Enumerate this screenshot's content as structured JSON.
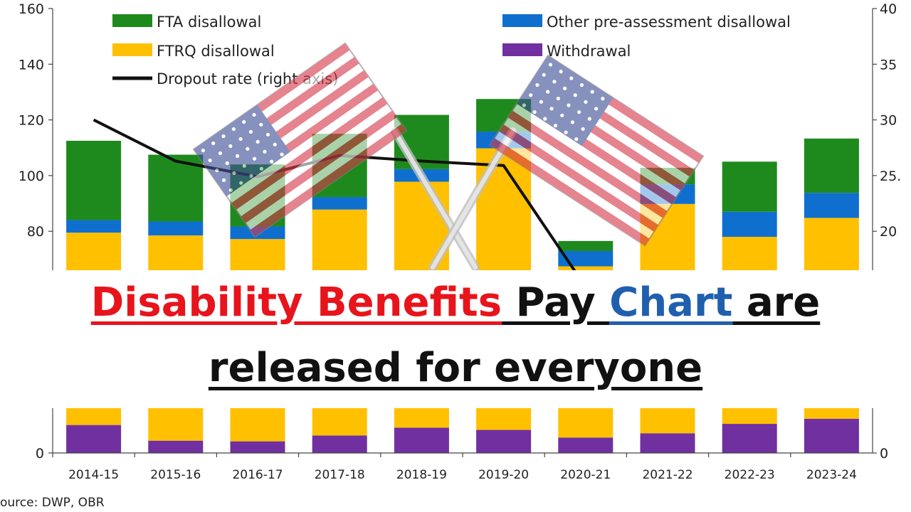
{
  "colors": {
    "fta": "#1e8a1e",
    "other_pre": "#0f6fcf",
    "ftrq": "#ffc000",
    "withdrawal": "#7030a0",
    "dropout_line": "#111111",
    "headline_red": "#e8141c",
    "headline_blue": "#1f5fae"
  },
  "headline": {
    "line1": [
      {
        "text": "Disability Benefits",
        "color": "red"
      },
      {
        "text": " Pay ",
        "color": "black"
      },
      {
        "text": "Chart",
        "color": "blue"
      },
      {
        "text": " are",
        "color": "black"
      }
    ],
    "line2": "released for everyone"
  },
  "source": "ource: DWP, OBR",
  "overlay_icons": [
    "us-flag-icon",
    "us-flag-icon"
  ],
  "chart_data": {
    "type": "bar",
    "stacked": true,
    "categories": [
      "2014-15",
      "2015-16",
      "2016-17",
      "2017-18",
      "2018-19",
      "2019-20",
      "2020-21",
      "2021-22",
      "2022-23",
      "2023-24"
    ],
    "series": [
      {
        "name": "Withdrawal",
        "key": "withdrawal",
        "values": [
          12.5,
          5.5,
          5.2,
          7.8,
          11.3,
          10.3,
          6.9,
          8.8,
          13.0,
          15.3
        ]
      },
      {
        "name": "FTRQ disallowal",
        "key": "ftrq",
        "values": [
          67.0,
          73.0,
          72.0,
          80.0,
          86.5,
          99.5,
          60.5,
          81.0,
          65.0,
          69.5
        ]
      },
      {
        "name": "Other pre-assessment disallowal",
        "key": "other_pre",
        "values": [
          4.5,
          5.0,
          4.5,
          4.5,
          4.5,
          6.0,
          5.5,
          7.0,
          9.0,
          9.0
        ]
      },
      {
        "name": "FTA disallowal",
        "key": "fta",
        "values": [
          28.5,
          24.0,
          22.3,
          22.7,
          19.5,
          11.7,
          3.6,
          6.0,
          18.0,
          19.5
        ]
      }
    ],
    "line_series": {
      "name": "Dropout rate (right axis)",
      "axis": "right",
      "values": [
        30.0,
        26.3,
        24.9,
        26.8,
        26.3,
        25.9,
        15.0,
        null,
        null,
        null
      ]
    },
    "legend": [
      {
        "label": "FTA disallowal",
        "key": "fta",
        "kind": "box"
      },
      {
        "label": "Other pre-assessment disallowal",
        "key": "other_pre",
        "kind": "box"
      },
      {
        "label": "FTRQ disallowal",
        "key": "ftrq",
        "kind": "box"
      },
      {
        "label": "Withdrawal",
        "key": "withdrawal",
        "kind": "box"
      },
      {
        "label": "Dropout rate (right axis)",
        "key": "dropout_line",
        "kind": "line"
      }
    ],
    "ylim": [
      0,
      160
    ],
    "y2lim": [
      0,
      40
    ],
    "y_ticks": [
      0,
      80,
      100,
      120,
      140,
      160
    ],
    "y2_ticks": [
      0,
      20,
      25,
      30,
      35,
      40
    ],
    "y2_tick_labels": [
      "0",
      "20",
      "25.",
      "30",
      "35",
      "40"
    ],
    "visible_band_low": [
      0,
      20
    ],
    "visible_band_high": [
      66,
      160
    ],
    "grid": false,
    "legend_position": "top"
  }
}
